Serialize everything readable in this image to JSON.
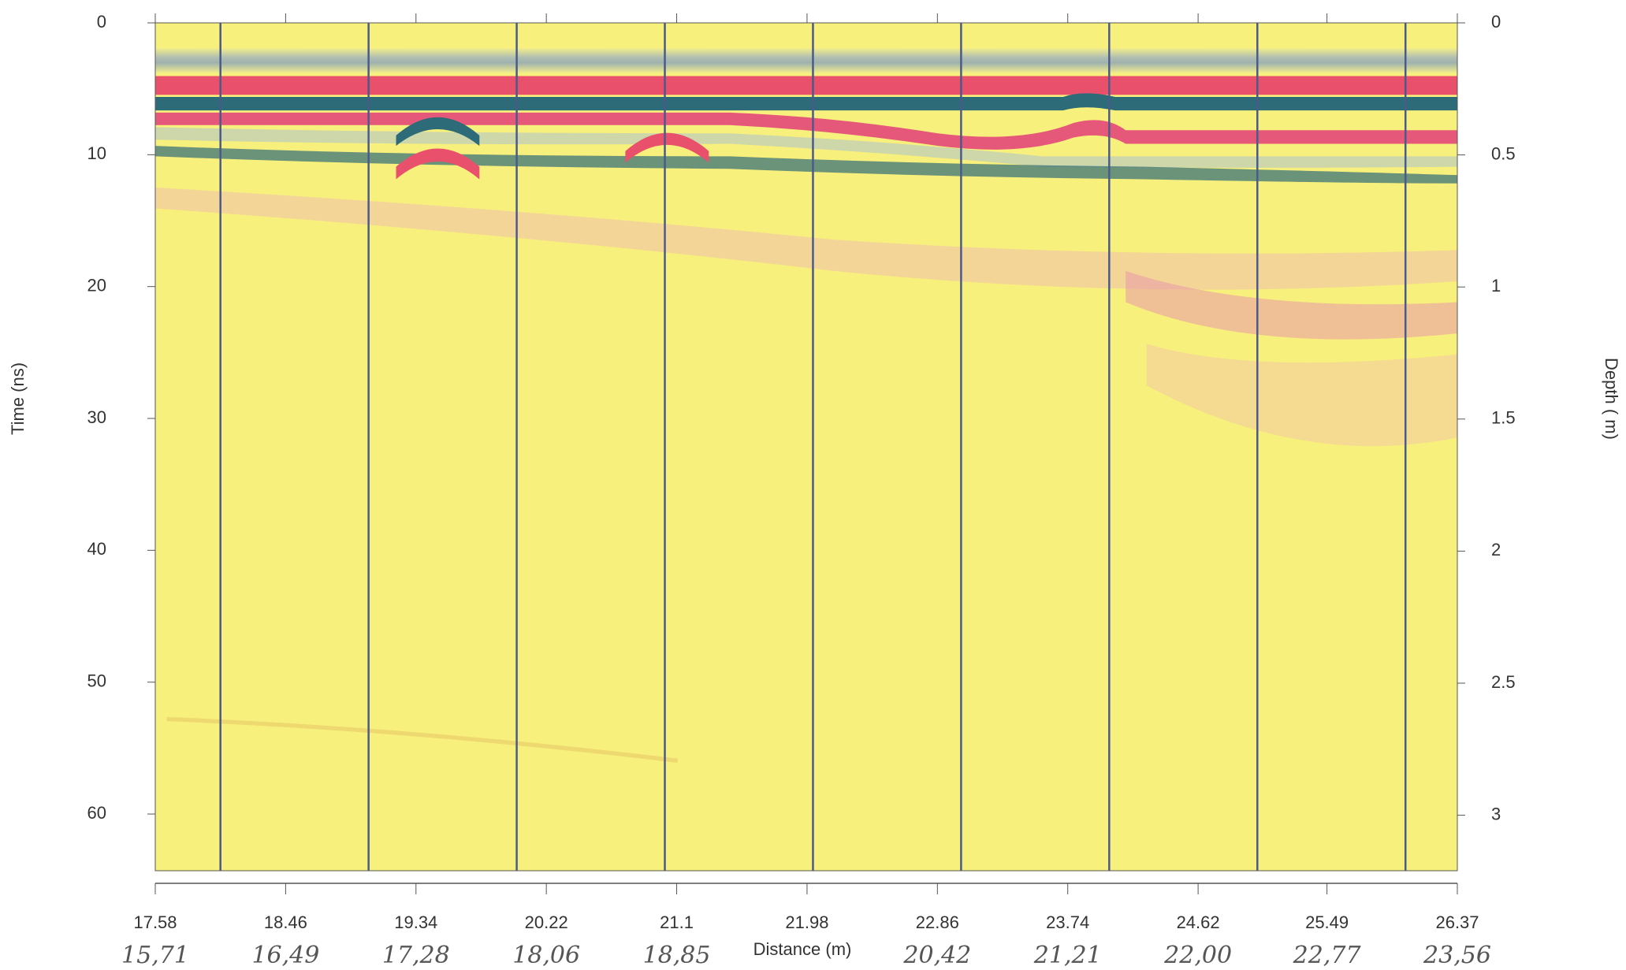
{
  "chart_data": {
    "type": "radargram",
    "xlabel": "Distance (m)",
    "ylabel": "Time (ns)",
    "y2label": "Depth ( m)",
    "xlim": [
      17.58,
      26.37
    ],
    "xticks": [
      17.58,
      18.46,
      19.34,
      20.22,
      21.1,
      21.98,
      22.86,
      23.74,
      24.62,
      25.49,
      26.37
    ],
    "ylim": [
      0,
      64.3
    ],
    "yticks": [
      0,
      10,
      20,
      30,
      40,
      50,
      60
    ],
    "y2lim": [
      0,
      3.21
    ],
    "y2ticks": [
      0,
      0.5,
      1,
      1.5,
      2,
      2.5,
      3
    ],
    "markers": [
      18.02,
      19.02,
      20.02,
      21.02,
      22.02,
      23.02,
      24.02,
      25.02,
      26.02
    ],
    "marker_color": "#4a5a8a",
    "annotations": [
      "15,71",
      "16,49",
      "17,28",
      "18,06",
      "18,85",
      null,
      "20,42",
      "21,21",
      "22,00",
      "22,77",
      "23,56"
    ]
  }
}
